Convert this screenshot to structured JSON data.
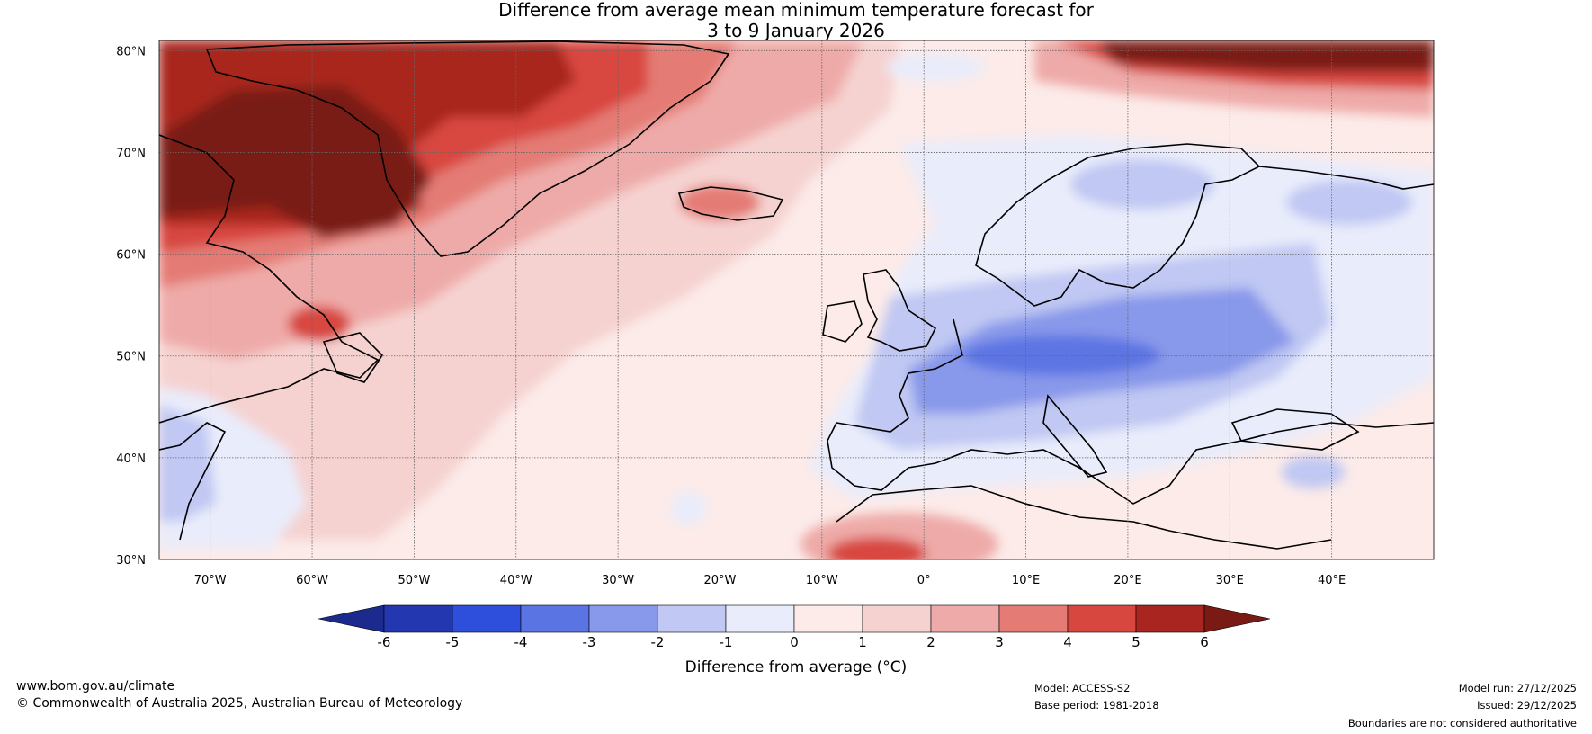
{
  "title": {
    "line1": "Difference from average mean minimum temperature forecast for",
    "line2": "3 to 9 January 2026"
  },
  "map": {
    "lat_labels": [
      "80°N",
      "70°N",
      "60°N",
      "50°N",
      "40°N",
      "30°N"
    ],
    "lon_labels": [
      "70°W",
      "60°W",
      "50°W",
      "40°W",
      "30°W",
      "20°W",
      "10°W",
      "0°",
      "10°E",
      "20°E",
      "30°E",
      "40°E"
    ],
    "extent": {
      "lon_min": -75,
      "lon_max": 50,
      "lat_min": 30,
      "lat_max": 81
    }
  },
  "colorbar": {
    "ticks": [
      "-6",
      "-5",
      "-4",
      "-3",
      "-2",
      "-1",
      "0",
      "1",
      "2",
      "3",
      "4",
      "5",
      "6"
    ],
    "colors": [
      "#1b2a8c",
      "#2338b0",
      "#2d4fdb",
      "#5b74e3",
      "#8898ea",
      "#c0c8f3",
      "#e9ecfb",
      "#fcebe9",
      "#f5d2d0",
      "#eeaaa8",
      "#e47b74",
      "#d8473f",
      "#a8261f",
      "#7a1a15"
    ],
    "label": "Difference from average (°C)"
  },
  "chart_data": {
    "type": "heatmap",
    "title": "Difference from average mean minimum temperature forecast for 3 to 9 January 2026",
    "colorbar_label": "Difference from average (°C)",
    "levels": [
      -6,
      -5,
      -4,
      -3,
      -2,
      -1,
      0,
      1,
      2,
      3,
      4,
      5,
      6
    ],
    "x_range": [
      -75,
      50
    ],
    "y_range": [
      30,
      81
    ],
    "x_ticks": [
      -70,
      -60,
      -50,
      -40,
      -30,
      -20,
      -10,
      0,
      10,
      20,
      30,
      40
    ],
    "y_ticks": [
      80,
      70,
      60,
      50,
      40,
      30
    ]
  },
  "footer": {
    "website": "www.bom.gov.au/climate",
    "copyright": "© Commonwealth of Australia 2025, Australian Bureau of Meteorology",
    "model": "Model: ACCESS-S2",
    "base_period": "Base period: 1981-2018",
    "model_run": "Model run: 27/12/2025",
    "issued": "Issued: 29/12/2025",
    "disclaimer": "Boundaries are not considered authoritative"
  }
}
